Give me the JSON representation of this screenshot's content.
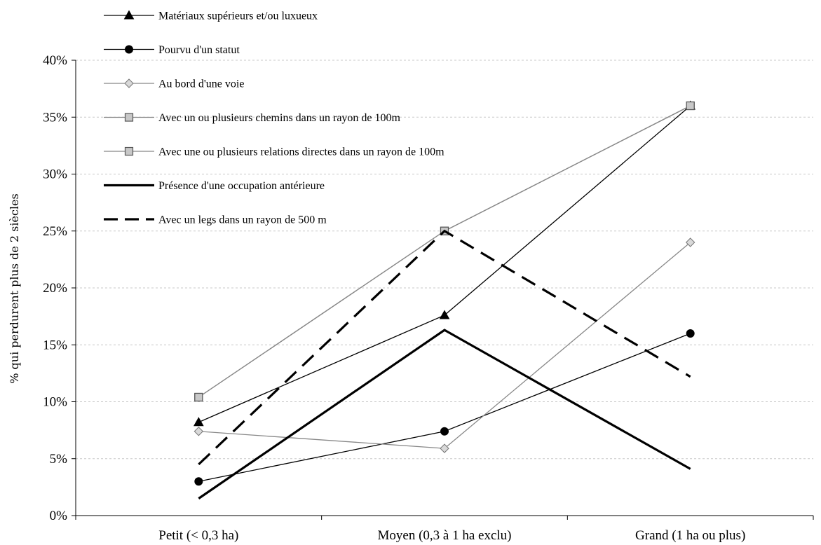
{
  "chart_data": {
    "type": "line",
    "title": "",
    "xlabel": "",
    "ylabel": "% qui perdurent plus de 2 siècles",
    "categories": [
      "Petit (< 0,3 ha)",
      "Moyen (0,3 à 1 ha exclu)",
      "Grand (1 ha ou plus)"
    ],
    "ylim": [
      0,
      40
    ],
    "yticks": [
      0,
      5,
      10,
      15,
      20,
      25,
      30,
      35,
      40
    ],
    "ytick_labels": [
      "0%",
      "5%",
      "10%",
      "15%",
      "20%",
      "25%",
      "30%",
      "35%",
      "40%"
    ],
    "grid": "horizontal dashed",
    "legend_position": "top-left",
    "series": [
      {
        "name": "Matériaux supérieurs et/ou luxueux",
        "values": [
          8.2,
          17.6,
          36.0
        ],
        "color": "#000000",
        "marker": "triangle",
        "line": "thin"
      },
      {
        "name": "Pourvu d'un statut",
        "values": [
          3.0,
          7.4,
          16.0
        ],
        "color": "#000000",
        "marker": "circle",
        "line": "thin"
      },
      {
        "name": "Au bord d'une voie",
        "values": [
          7.4,
          5.9,
          24.0
        ],
        "color": "#888888",
        "marker": "diamond",
        "line": "thin"
      },
      {
        "name": "Avec un ou plusieurs chemins dans un rayon de 100m",
        "values": [
          10.4,
          25.0,
          36.0
        ],
        "color": "#888888",
        "marker": "square",
        "line": "thin"
      },
      {
        "name": "Avec une ou plusieurs relations directes dans un rayon de 100m",
        "values": [
          10.4,
          25.0,
          36.0
        ],
        "color": "#888888",
        "marker": "square",
        "line": "thin"
      },
      {
        "name": "Présence d'une occupation antérieure",
        "values": [
          1.5,
          16.3,
          4.1
        ],
        "color": "#000000",
        "marker": "none",
        "line": "thick"
      },
      {
        "name": "Avec un legs dans un rayon de 500 m",
        "values": [
          4.5,
          25.0,
          12.2
        ],
        "color": "#000000",
        "marker": "none",
        "line": "dashed"
      }
    ]
  }
}
